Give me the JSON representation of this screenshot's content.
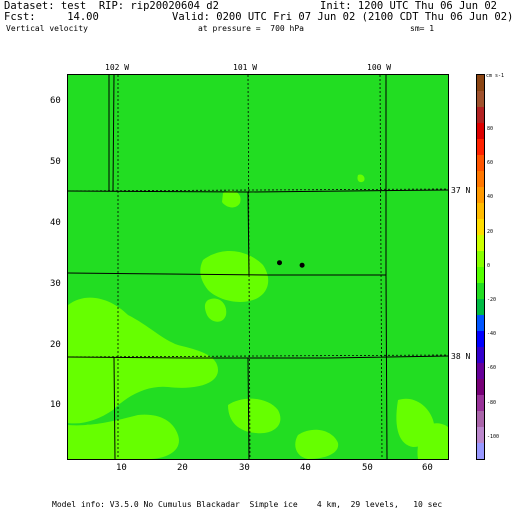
{
  "header": {
    "dataset_line": "Dataset: test  RIP: rip20020604 d2",
    "init_line": "Init: 1200 UTC Thu 06 Jun 02",
    "fcst_line": "Fcst:     14.00",
    "valid_line": "Valid: 0200 UTC Fri 07 Jun 02 (2100 CDT Thu 06 Jun 02)",
    "field_name": "Vertical velocity",
    "pressure_line": "at pressure =  700 hPa",
    "smoothing": "sm= 1"
  },
  "footer": {
    "model_info": "Model info: V3.5.0 No Cumulus Blackadar  Simple ice    4 km,  29 levels,   10 sec"
  },
  "map": {
    "x_axis_ticks": [
      "10",
      "20",
      "30",
      "40",
      "50",
      "60"
    ],
    "y_axis_ticks": [
      "10",
      "20",
      "30",
      "40",
      "50",
      "60"
    ],
    "longitude_labels": [
      "102 W",
      "101 W",
      "100 W"
    ],
    "latitude_labels": [
      "37 N",
      "38 N"
    ],
    "grid_range": {
      "x": [
        1,
        63
      ],
      "y": [
        1,
        64
      ]
    },
    "background_color": "#22dd22",
    "highlight_color": "#66ff00",
    "stations": [
      {
        "x": 35.5,
        "y": 33.2
      },
      {
        "x": 39.2,
        "y": 32.8
      }
    ]
  },
  "colorbar": {
    "unit": "cm s-1",
    "labels": [
      "80",
      "60",
      "40",
      "20",
      "0",
      "-20",
      "-40",
      "-60",
      "-80",
      "-100"
    ],
    "colors": [
      "#8b4513",
      "#a0522d",
      "#b22222",
      "#dd0000",
      "#ff2200",
      "#ff5500",
      "#ff7700",
      "#ff9900",
      "#ffbb00",
      "#ffdd00",
      "#ccff00",
      "#88ff00",
      "#55ff00",
      "#22dd22",
      "#00bb44",
      "#0055ff",
      "#0000ff",
      "#3300cc",
      "#660099",
      "#770077",
      "#993399",
      "#aa66aa",
      "#bb88cc",
      "#9999ff"
    ]
  }
}
